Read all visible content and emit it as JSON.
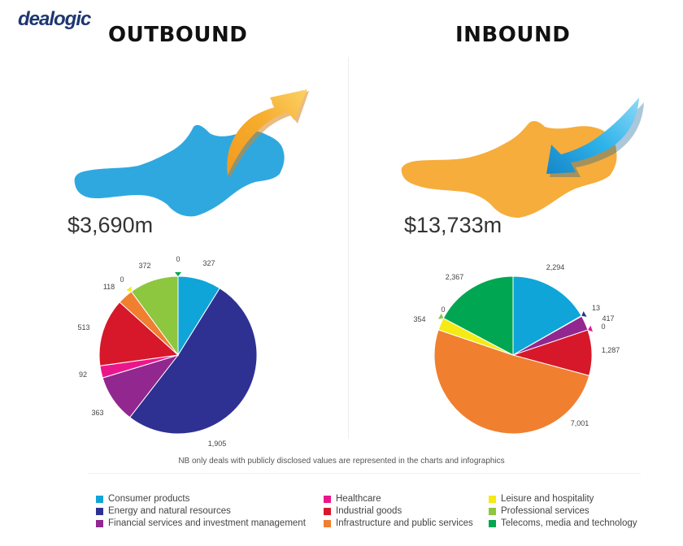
{
  "logo": "dealogic",
  "outbound": {
    "heading": "OUTBOUND",
    "amount": "$3,690m"
  },
  "inbound": {
    "heading": "INBOUND",
    "amount": "$13,733m"
  },
  "note": "NB only deals with publicly disclosed values are represented in the charts and infographics",
  "legend": [
    {
      "label": "Consumer products",
      "color": "#0fa5d8"
    },
    {
      "label": "Energy and natural resources",
      "color": "#2e3192"
    },
    {
      "label": "Financial services and investment management",
      "color": "#92278f"
    },
    {
      "label": "Healthcare",
      "color": "#ec168c"
    },
    {
      "label": "Industrial goods",
      "color": "#d7182a"
    },
    {
      "label": "Infrastructure and public services",
      "color": "#f07f2f"
    },
    {
      "label": "Leisure and hospitality",
      "color": "#f5ea14"
    },
    {
      "label": "Professional services",
      "color": "#8dc63f"
    },
    {
      "label": "Telecoms, media and technology",
      "color": "#00a651"
    }
  ],
  "chart_data": [
    {
      "type": "pie",
      "title": "OUTBOUND",
      "categories": [
        "Consumer products",
        "Energy and natural resources",
        "Financial services and investment management",
        "Healthcare",
        "Industrial goods",
        "Infrastructure and public services",
        "Leisure and hospitality",
        "Professional services",
        "Telecoms, media and technology"
      ],
      "values": [
        327,
        1905,
        363,
        92,
        513,
        118,
        0,
        372,
        0
      ],
      "labels": [
        "327",
        "1,905",
        "363",
        "92",
        "513",
        "118",
        "0",
        "372",
        "0"
      ]
    },
    {
      "type": "pie",
      "title": "INBOUND",
      "categories": [
        "Consumer products",
        "Energy and natural resources",
        "Financial services and investment management",
        "Healthcare",
        "Industrial goods",
        "Infrastructure and public services",
        "Leisure and hospitality",
        "Professional services",
        "Telecoms, media and technology"
      ],
      "values": [
        2294,
        13,
        417,
        0,
        1287,
        7001,
        354,
        0,
        2367
      ],
      "labels": [
        "2,294",
        "13",
        "417",
        "0",
        "1,287",
        "7,001",
        "354",
        "0",
        "2,367"
      ]
    }
  ]
}
